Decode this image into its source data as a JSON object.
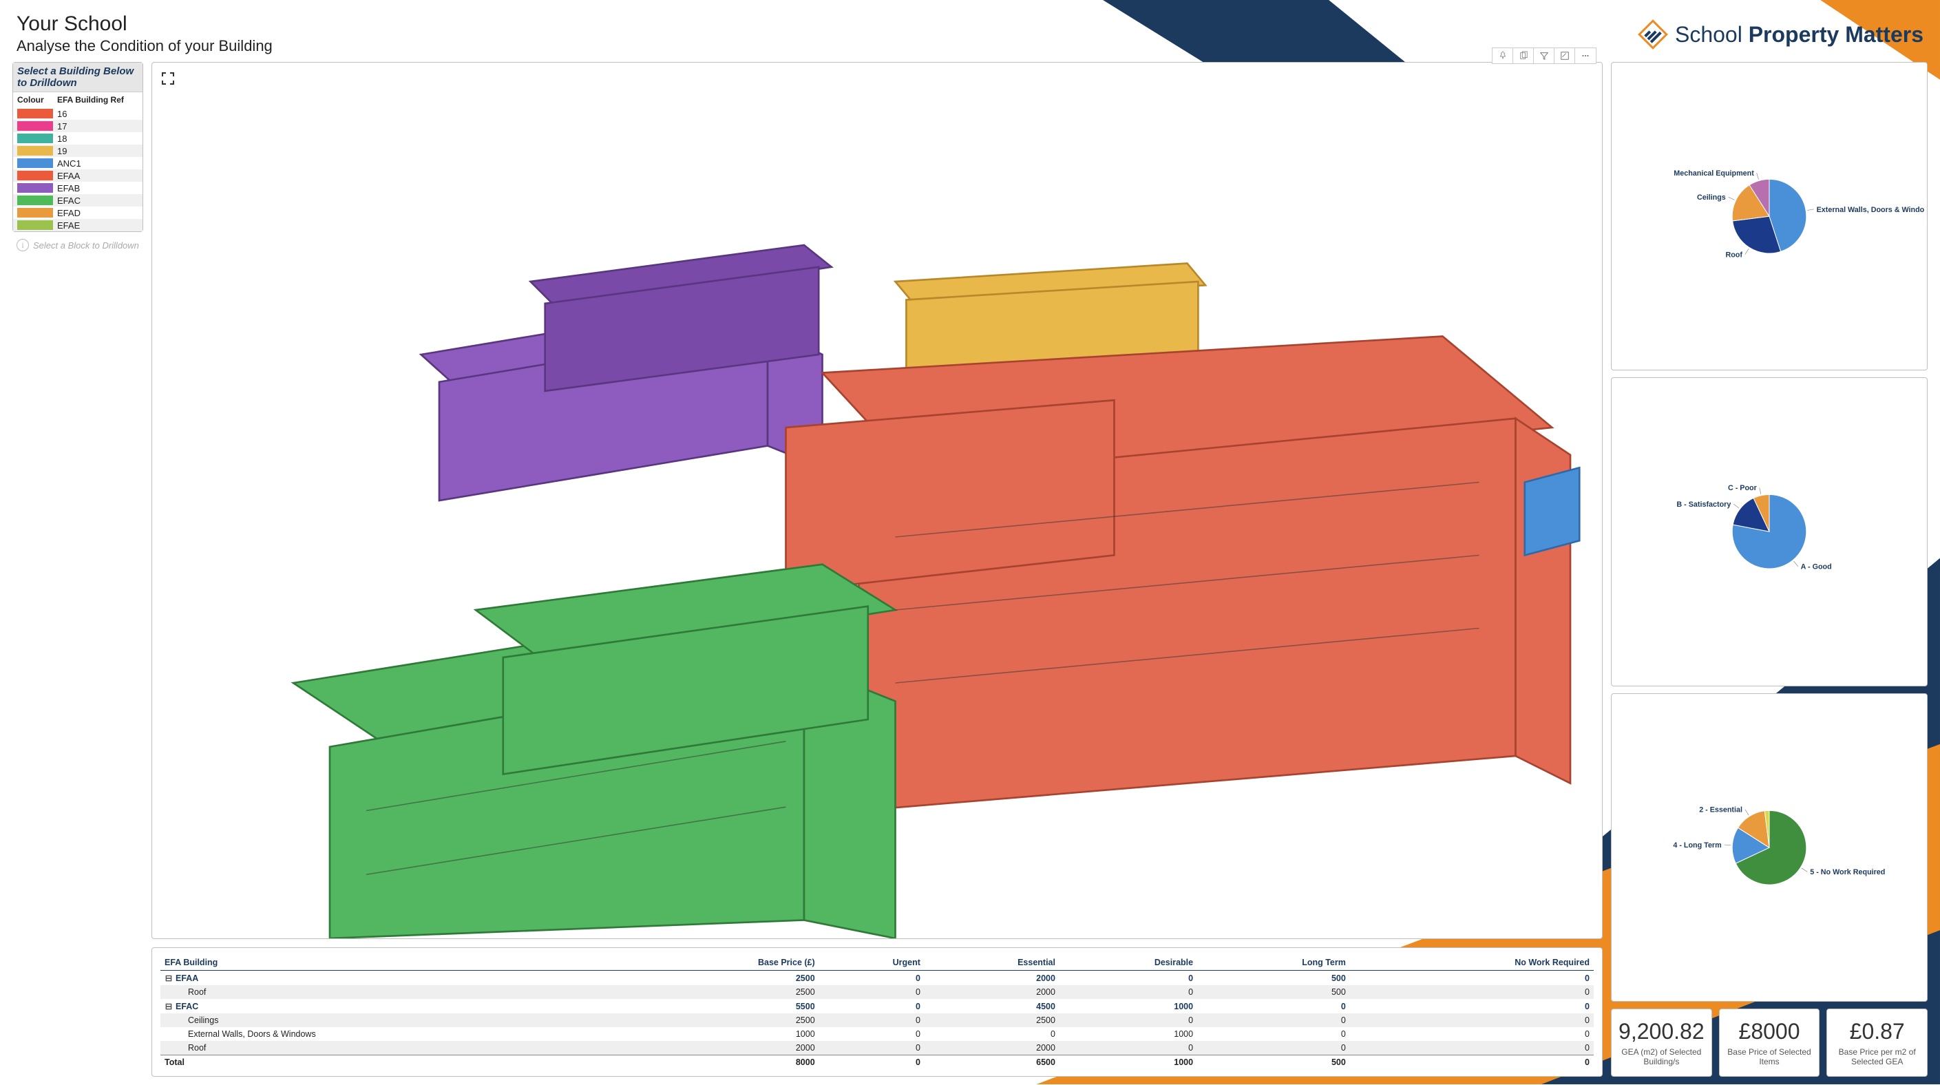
{
  "header": {
    "title": "Your School",
    "subtitle": "Analyse the Condition of your Building",
    "brand_prefix": "School ",
    "brand_bold": "Property Matters",
    "brand_navy": "#1b3a5e",
    "brand_orange": "#ec8b22"
  },
  "background": {
    "navy": "#1b3a5e",
    "orange": "#ec8b22"
  },
  "legend": {
    "title": "Select a Building Below to Drilldown",
    "col1": "Colour",
    "col2": "EFA Building Ref",
    "rows": [
      {
        "color": "#ec5a3c",
        "label": "16"
      },
      {
        "color": "#e83e8c",
        "label": "17"
      },
      {
        "color": "#3fb39d",
        "label": "18"
      },
      {
        "color": "#e9b84a",
        "label": "19"
      },
      {
        "color": "#4a90d9",
        "label": "ANC1"
      },
      {
        "color": "#ec5a3c",
        "label": "EFAA"
      },
      {
        "color": "#8e5bbf",
        "label": "EFAB"
      },
      {
        "color": "#4fba5a",
        "label": "EFAC"
      },
      {
        "color": "#e99a3c",
        "label": "EFAD"
      },
      {
        "color": "#9ac24c",
        "label": "EFAE"
      }
    ]
  },
  "hint": {
    "text": "Select a Block to Drilldown"
  },
  "viewer": {
    "bg": "#ffffff",
    "buildings": {
      "efab_purple": "#8e5bbf",
      "efad_orange": "#e9b84a",
      "efaa_red": "#e36a52",
      "efac_green": "#52b760",
      "anc_blue": "#4a90d9"
    }
  },
  "toolbar_icons": [
    "pin",
    "copy",
    "filter",
    "focus",
    "more"
  ],
  "table": {
    "columns": [
      "EFA Building",
      "Base Price (£)",
      "Urgent",
      "Essential",
      "Desirable",
      "Long Term",
      "No Work Required"
    ],
    "rows": [
      {
        "type": "group",
        "cells": [
          "EFAA",
          "2500",
          "0",
          "2000",
          "0",
          "500",
          "0"
        ]
      },
      {
        "type": "sub",
        "shade": true,
        "cells": [
          "Roof",
          "2500",
          "0",
          "2000",
          "0",
          "500",
          "0"
        ]
      },
      {
        "type": "group",
        "cells": [
          "EFAC",
          "5500",
          "0",
          "4500",
          "1000",
          "0",
          "0"
        ]
      },
      {
        "type": "sub",
        "shade": true,
        "cells": [
          "Ceilings",
          "2500",
          "0",
          "2500",
          "0",
          "0",
          "0"
        ]
      },
      {
        "type": "sub",
        "cells": [
          "External Walls, Doors & Windows",
          "1000",
          "0",
          "0",
          "1000",
          "0",
          "0"
        ]
      },
      {
        "type": "sub",
        "shade": true,
        "cells": [
          "Roof",
          "2000",
          "0",
          "2000",
          "0",
          "0",
          "0"
        ]
      },
      {
        "type": "total",
        "cells": [
          "Total",
          "8000",
          "0",
          "6500",
          "1000",
          "500",
          "0"
        ]
      }
    ]
  },
  "pies": {
    "element": {
      "slices": [
        {
          "label": "External Walls, Doors & Windows",
          "value": 45,
          "color": "#4a90d9"
        },
        {
          "label": "Roof",
          "value": 28,
          "color": "#1b3a8a"
        },
        {
          "label": "Ceilings",
          "value": 18,
          "color": "#e99a3c"
        },
        {
          "label": "Mechanical Equipment",
          "value": 9,
          "color": "#b86fae"
        }
      ]
    },
    "condition": {
      "slices": [
        {
          "label": "A - Good",
          "value": 78,
          "color": "#4a90d9"
        },
        {
          "label": "B - Satisfactory",
          "value": 15,
          "color": "#1b3a8a"
        },
        {
          "label": "C - Poor",
          "value": 7,
          "color": "#e99a3c"
        }
      ]
    },
    "priority": {
      "slices": [
        {
          "label": "5 - No Work Required",
          "value": 68,
          "color": "#3f8f3f"
        },
        {
          "label": "4 - Long Term",
          "value": 16,
          "color": "#4a90d9"
        },
        {
          "label": "2 - Essential",
          "value": 14,
          "color": "#e99a3c"
        },
        {
          "label": "other",
          "value": 2,
          "color": "#d9d94a"
        }
      ]
    }
  },
  "kpis": [
    {
      "value": "9,200.82",
      "caption": "GEA (m2) of Selected Building/s"
    },
    {
      "value": "£8000",
      "caption": "Base Price of Selected Items"
    },
    {
      "value": "£0.87",
      "caption": "Base Price per m2 of Selected GEA"
    }
  ]
}
